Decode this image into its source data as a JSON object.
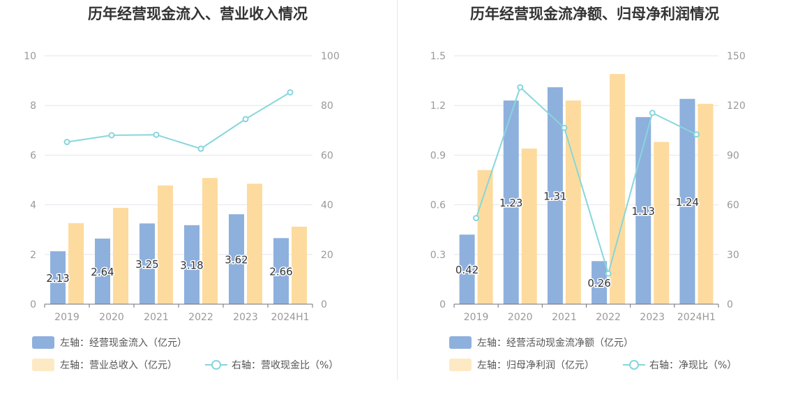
{
  "colors": {
    "bar_blue": "#8eb0dd",
    "bar_orange": "#fddb9e",
    "line_cyan": "#86d6dc",
    "grid": "#e3e6f0",
    "axis": "#999999"
  },
  "chart_data": [
    {
      "type": "bar",
      "title": "历年经营现金流入、营业收入情况",
      "categories": [
        "2019",
        "2020",
        "2021",
        "2022",
        "2023",
        "2024H1"
      ],
      "left_axis": {
        "ylim": [
          0,
          10
        ],
        "ticks": [
          "0",
          "2",
          "4",
          "6",
          "8",
          "10"
        ]
      },
      "right_axis": {
        "ylim": [
          0,
          100
        ],
        "ticks": [
          "0",
          "20",
          "40",
          "60",
          "80",
          "100"
        ]
      },
      "grid": true,
      "legend_position": "bottom",
      "series": [
        {
          "name": "左轴：经营现金流入（亿元）",
          "kind": "bar",
          "axis": "left",
          "color": "#8eb0dd",
          "values": [
            2.13,
            2.64,
            3.25,
            3.18,
            3.62,
            2.66
          ],
          "labels": [
            "2.13",
            "2.64",
            "3.25",
            "3.18",
            "3.62",
            "2.66"
          ]
        },
        {
          "name": "左轴：营业总收入（亿元）",
          "kind": "bar",
          "axis": "left",
          "color": "#fddb9e",
          "values": [
            3.26,
            3.88,
            4.78,
            5.08,
            4.85,
            3.12
          ]
        },
        {
          "name": "右轴：营收现金比（%）",
          "kind": "line",
          "axis": "right",
          "color": "#86d6dc",
          "values": [
            65.3,
            68.0,
            68.2,
            62.6,
            74.5,
            85.3
          ]
        }
      ]
    },
    {
      "type": "bar",
      "title": "历年经营现金流净额、归母净利润情况",
      "categories": [
        "2019",
        "2020",
        "2021",
        "2022",
        "2023",
        "2024H1"
      ],
      "left_axis": {
        "ylim": [
          0,
          1.5
        ],
        "ticks": [
          "0",
          "0.3",
          "0.6",
          "0.9",
          "1.2",
          "1.5"
        ]
      },
      "right_axis": {
        "ylim": [
          0,
          150
        ],
        "ticks": [
          "0",
          "30",
          "60",
          "90",
          "120",
          "150"
        ]
      },
      "grid": true,
      "legend_position": "bottom",
      "series": [
        {
          "name": "左轴：经营活动现金流净额（亿元）",
          "kind": "bar",
          "axis": "left",
          "color": "#8eb0dd",
          "values": [
            0.42,
            1.23,
            1.31,
            0.26,
            1.13,
            1.24
          ],
          "labels": [
            "0.42",
            "1.23",
            "1.31",
            "0.26",
            "1.13",
            "1.24"
          ]
        },
        {
          "name": "左轴：归母净利润（亿元）",
          "kind": "bar",
          "axis": "left",
          "color": "#fddb9e",
          "values": [
            0.81,
            0.94,
            1.23,
            1.39,
            0.98,
            1.21
          ]
        },
        {
          "name": "右轴：净现比（%）",
          "kind": "line",
          "axis": "right",
          "color": "#86d6dc",
          "values": [
            52.0,
            131.0,
            106.5,
            18.5,
            115.5,
            102.5
          ]
        }
      ]
    }
  ]
}
